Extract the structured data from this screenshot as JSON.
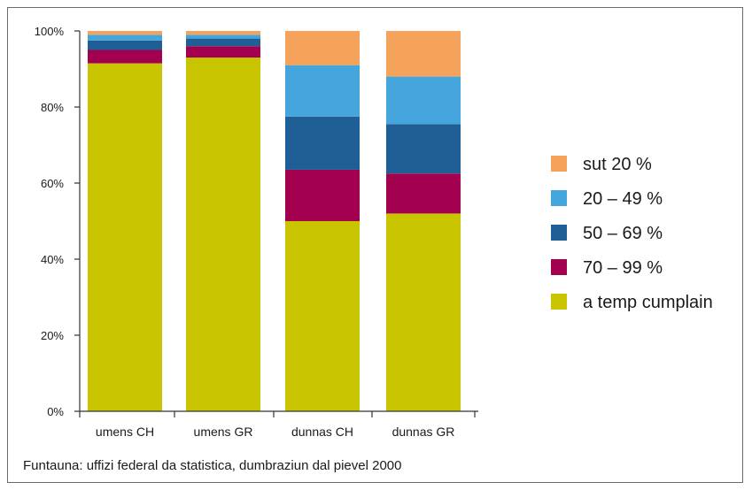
{
  "chart_data": {
    "type": "bar",
    "stacked": true,
    "categories": [
      "umens CH",
      "umens GR",
      "dunnas CH",
      "dunnas GR"
    ],
    "series": [
      {
        "name": "a temp cumplain",
        "color": "#c8c400",
        "values": [
          91.5,
          93,
          50,
          52
        ]
      },
      {
        "name": "70 – 99 %",
        "color": "#a3004f",
        "values": [
          3.5,
          3,
          13.5,
          10.5
        ]
      },
      {
        "name": "50 – 69 %",
        "color": "#1f5f96",
        "values": [
          2.5,
          2,
          14,
          13
        ]
      },
      {
        "name": "20 – 49 %",
        "color": "#45a6dd",
        "values": [
          1.5,
          1,
          13.5,
          12.5
        ]
      },
      {
        "name": "sut 20 %",
        "color": "#f5a35a",
        "values": [
          1,
          1,
          9,
          12
        ]
      }
    ],
    "legend_order": [
      "sut 20 %",
      "20 – 49 %",
      "50 – 69 %",
      "70 – 99 %",
      "a temp cumplain"
    ],
    "legend_position": "right",
    "yticks": [
      "0%",
      "20%",
      "40%",
      "60%",
      "80%",
      "100%"
    ],
    "ylim": [
      0,
      100
    ],
    "grid": false
  },
  "source_note": "Funtauna: uffizi federal da statistica, dumbraziun dal pievel 2000"
}
